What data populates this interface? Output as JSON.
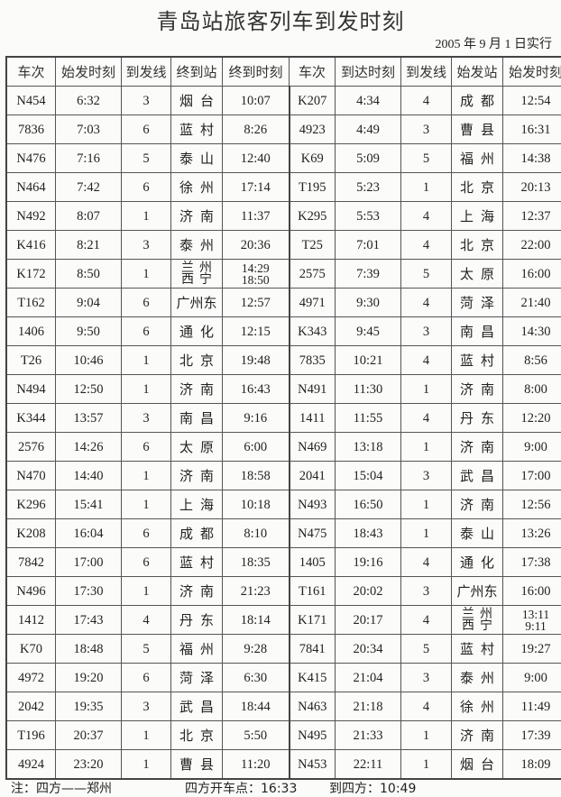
{
  "title": "青岛站旅客列车到发时刻",
  "effective_date": "2005 年 9 月 1 日实行",
  "headers": [
    "车次",
    "始发时刻",
    "到发线",
    "终到站",
    "终到时刻",
    "车次",
    "到达时刻",
    "到发线",
    "始发站",
    "始发时刻"
  ],
  "rows": [
    [
      "N454",
      "6:32",
      "3",
      "烟台",
      "10:07",
      "K207",
      "4:34",
      "4",
      "成都",
      "12:54"
    ],
    [
      "7836",
      "7:03",
      "6",
      "蓝村",
      "8:26",
      "4923",
      "4:49",
      "3",
      "曹县",
      "16:31"
    ],
    [
      "N476",
      "7:16",
      "5",
      "泰山",
      "12:40",
      "K69",
      "5:09",
      "5",
      "福州",
      "14:38"
    ],
    [
      "N464",
      "7:42",
      "6",
      "徐州",
      "17:14",
      "T195",
      "5:23",
      "1",
      "北京",
      "20:13"
    ],
    [
      "N492",
      "8:07",
      "1",
      "济南",
      "11:37",
      "K295",
      "5:53",
      "4",
      "上海",
      "12:37"
    ],
    [
      "K416",
      "8:21",
      "3",
      "泰州",
      "20:36",
      "T25",
      "7:01",
      "4",
      "北京",
      "22:00"
    ],
    [
      "K172",
      "8:50",
      "1",
      "兰州\n西宁",
      "14:29\n18:50",
      "2575",
      "7:39",
      "5",
      "太原",
      "16:00"
    ],
    [
      "T162",
      "9:04",
      "6",
      "广州东",
      "12:57",
      "4971",
      "9:30",
      "4",
      "菏泽",
      "21:40"
    ],
    [
      "1406",
      "9:50",
      "6",
      "通化",
      "12:15",
      "K343",
      "9:45",
      "3",
      "南昌",
      "14:30"
    ],
    [
      "T26",
      "10:46",
      "1",
      "北京",
      "19:48",
      "7835",
      "10:21",
      "4",
      "蓝村",
      "8:56"
    ],
    [
      "N494",
      "12:50",
      "1",
      "济南",
      "16:43",
      "N491",
      "11:30",
      "1",
      "济南",
      "8:00"
    ],
    [
      "K344",
      "13:57",
      "3",
      "南昌",
      "9:16",
      "1411",
      "11:55",
      "4",
      "丹东",
      "12:20"
    ],
    [
      "2576",
      "14:26",
      "6",
      "太原",
      "6:00",
      "N469",
      "13:18",
      "1",
      "济南",
      "9:00"
    ],
    [
      "N470",
      "14:40",
      "1",
      "济南",
      "18:58",
      "2041",
      "15:04",
      "3",
      "武昌",
      "17:00"
    ],
    [
      "K296",
      "15:41",
      "1",
      "上海",
      "10:18",
      "N493",
      "16:50",
      "1",
      "济南",
      "12:56"
    ],
    [
      "K208",
      "16:04",
      "6",
      "成都",
      "8:10",
      "N475",
      "18:43",
      "1",
      "泰山",
      "13:26"
    ],
    [
      "7842",
      "17:00",
      "6",
      "蓝村",
      "18:35",
      "1405",
      "19:16",
      "4",
      "通化",
      "17:38"
    ],
    [
      "N496",
      "17:30",
      "1",
      "济南",
      "21:23",
      "T161",
      "20:02",
      "3",
      "广州东",
      "16:00"
    ],
    [
      "1412",
      "17:43",
      "4",
      "丹东",
      "18:14",
      "K171",
      "20:17",
      "4",
      "兰州\n西宁",
      "13:11\n9:11"
    ],
    [
      "K70",
      "18:48",
      "5",
      "福州",
      "9:28",
      "7841",
      "20:34",
      "5",
      "蓝村",
      "19:27"
    ],
    [
      "4972",
      "19:20",
      "6",
      "菏泽",
      "6:30",
      "K415",
      "21:04",
      "3",
      "泰州",
      "9:00"
    ],
    [
      "2042",
      "19:35",
      "3",
      "武昌",
      "18:44",
      "N463",
      "21:18",
      "4",
      "徐州",
      "11:49"
    ],
    [
      "T196",
      "20:37",
      "1",
      "北京",
      "5:50",
      "N495",
      "21:33",
      "1",
      "济南",
      "17:39"
    ],
    [
      "4924",
      "23:20",
      "1",
      "曹县",
      "11:20",
      "N453",
      "22:11",
      "1",
      "烟台",
      "18:09"
    ]
  ],
  "footnote": {
    "route": "注：四方——郑州",
    "depart": "四方开车点：16:33",
    "arrive": "到四方：10:49"
  }
}
